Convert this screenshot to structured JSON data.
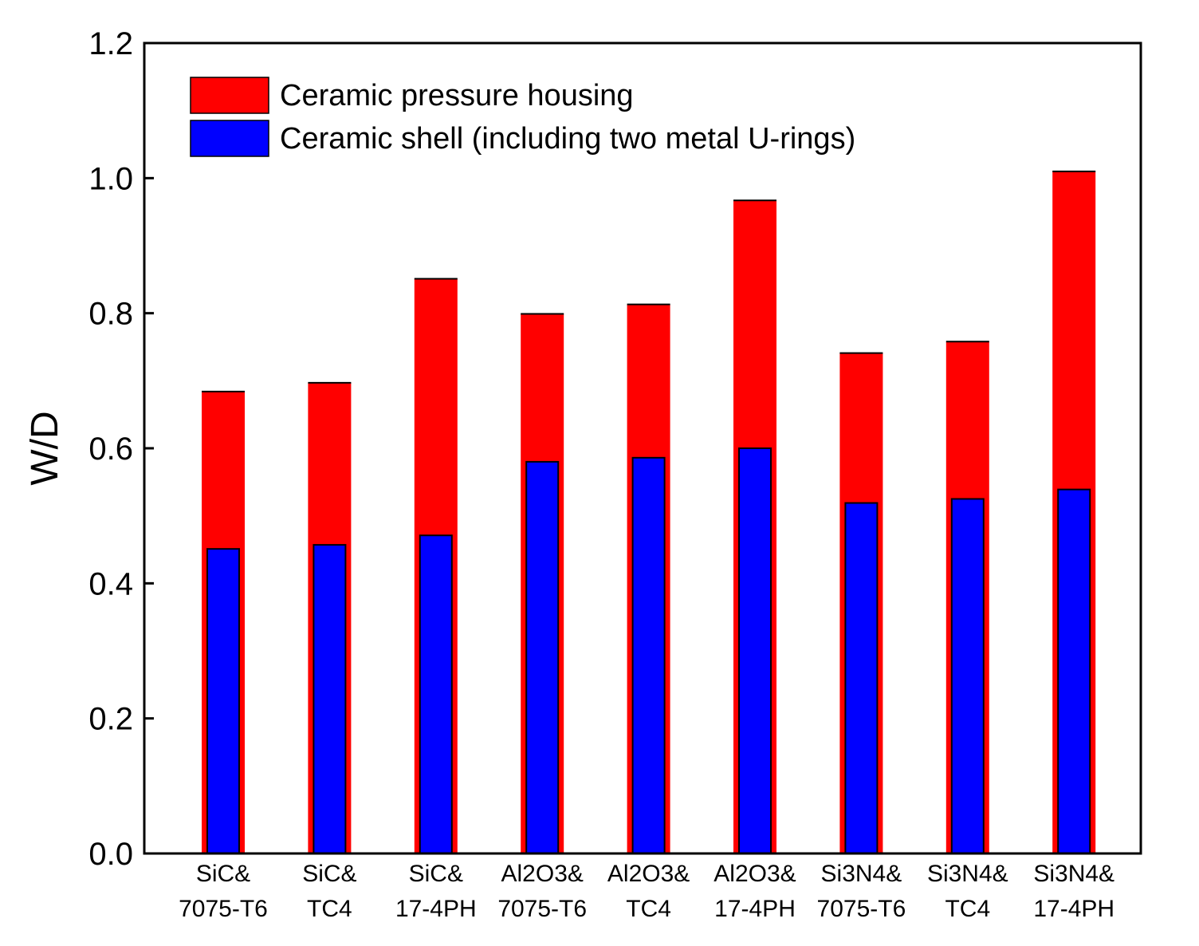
{
  "chart_data": {
    "type": "bar",
    "overlapping": true,
    "categories": [
      [
        "SiC&",
        "7075-T6"
      ],
      [
        "SiC&",
        "TC4"
      ],
      [
        "SiC&",
        "17-4PH"
      ],
      [
        "Al2O3&",
        "7075-T6"
      ],
      [
        "Al2O3&",
        "TC4"
      ],
      [
        "Al2O3&",
        "17-4PH"
      ],
      [
        "Si3N4&",
        "7075-T6"
      ],
      [
        "Si3N4&",
        "TC4"
      ],
      [
        "Si3N4&",
        "17-4PH"
      ]
    ],
    "series": [
      {
        "name": "Ceramic pressure housing",
        "color": "#ff0000",
        "values": [
          0.684,
          0.697,
          0.851,
          0.799,
          0.813,
          0.967,
          0.741,
          0.758,
          1.01
        ]
      },
      {
        "name": "Ceramic shell (including two metal U-rings)",
        "color": "#0000ff",
        "values": [
          0.451,
          0.457,
          0.471,
          0.58,
          0.586,
          0.6,
          0.519,
          0.525,
          0.539
        ]
      }
    ],
    "xlabel": "",
    "ylabel": "W/D",
    "ylim": [
      0,
      1.2
    ],
    "yticks": [
      "0.0",
      "0.2",
      "0.4",
      "0.6",
      "0.8",
      "1.0",
      "1.2"
    ],
    "ytick_values": [
      0,
      0.2,
      0.4,
      0.6,
      0.8,
      1.0,
      1.2
    ],
    "legend_position": "top-left",
    "grid": false
  }
}
